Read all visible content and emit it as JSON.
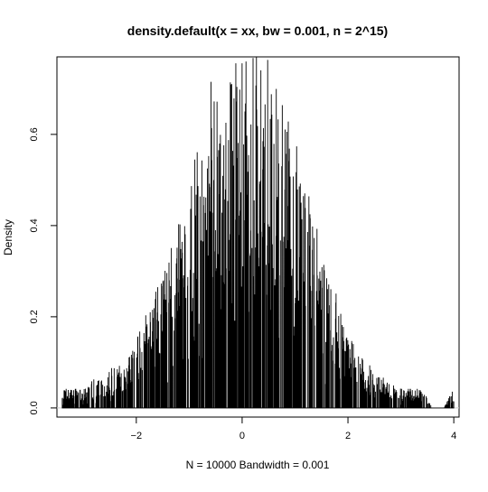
{
  "chart_data": {
    "type": "line",
    "title": "density.default(x = xx, bw = 0.001, n = 2^15)",
    "xlabel": "N = 10000   Bandwidth = 0.001",
    "ylabel": "Density",
    "xlim": [
      -3.5,
      4.1
    ],
    "ylim": [
      -0.02,
      0.77
    ],
    "x_ticks": [
      -2,
      0,
      2,
      4
    ],
    "x_tick_labels": [
      "−2",
      "0",
      "2",
      "4"
    ],
    "y_ticks": [
      0.0,
      0.2,
      0.4,
      0.6
    ],
    "y_tick_labels": [
      "0.0",
      "0.2",
      "0.4",
      "0.6"
    ],
    "grid": false,
    "legend": "none",
    "line_color": "#000000",
    "baseline_color": "#cccccc",
    "series": [
      {
        "x": [
          -3.4,
          -3.2,
          -3.0,
          -2.8,
          -2.6,
          -2.4,
          -2.2,
          -2.0,
          -1.8,
          -1.6,
          -1.4,
          -1.2,
          -1.0,
          -0.8,
          -0.6,
          -0.4,
          -0.2,
          0.0,
          0.2,
          0.4,
          0.6,
          0.8,
          1.0,
          1.2,
          1.4,
          1.6,
          1.8,
          2.0,
          2.2,
          2.4,
          2.6,
          2.8,
          3.0,
          3.2,
          3.4,
          3.6,
          3.8,
          4.0
        ],
        "y": [
          0.04,
          0.04,
          0.04,
          0.06,
          0.07,
          0.09,
          0.11,
          0.14,
          0.2,
          0.25,
          0.33,
          0.42,
          0.52,
          0.61,
          0.68,
          0.7,
          0.72,
          0.72,
          0.73,
          0.76,
          0.68,
          0.62,
          0.56,
          0.47,
          0.38,
          0.3,
          0.23,
          0.18,
          0.12,
          0.09,
          0.07,
          0.05,
          0.04,
          0.04,
          0.04,
          0.0,
          0.0,
          0.04
        ]
      }
    ]
  }
}
